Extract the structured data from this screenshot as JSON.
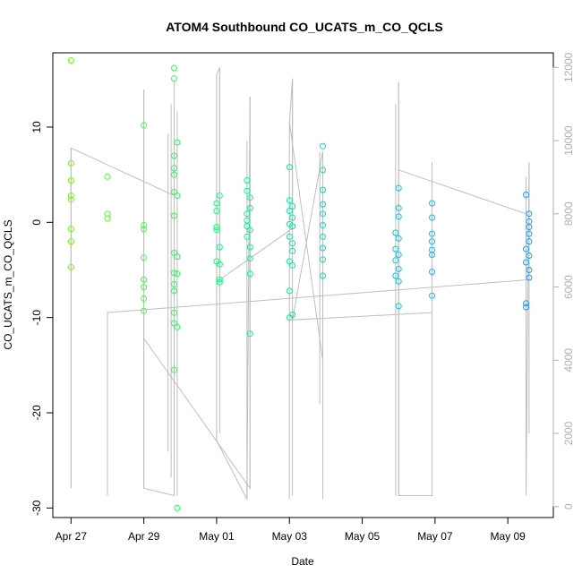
{
  "chart_data": {
    "type": "scatter",
    "title": "ATOM4 Southbound CO_UCATS_m_CO_QCLS",
    "xlabel": "Date",
    "ylabel": "CO_UCATS_m_CO_QCLS",
    "x_ticks": [
      {
        "date": "2016-04-27",
        "label": "Apr 27"
      },
      {
        "date": "2016-04-29",
        "label": "Apr 29"
      },
      {
        "date": "2016-05-01",
        "label": "May 01"
      },
      {
        "date": "2016-05-03",
        "label": "May 03"
      },
      {
        "date": "2016-05-05",
        "label": "May 05"
      },
      {
        "date": "2016-05-07",
        "label": "May 07"
      },
      {
        "date": "2016-05-09",
        "label": "May 09"
      }
    ],
    "xlim": [
      "2016-04-26T12:00",
      "2016-05-10T06:00"
    ],
    "ylim": [
      -31,
      17.8
    ],
    "y_ticks": [
      10,
      0,
      -10,
      -20,
      -30
    ],
    "y2_label": "",
    "y2lim": [
      -300,
      12400
    ],
    "y2_ticks": [
      0,
      2000,
      4000,
      6000,
      8000,
      10000,
      12000
    ],
    "grid": false,
    "colors": {
      "line": "#bebebe",
      "right_axis": "#b0b0b0",
      "point_early": "#7cfc00",
      "point_mid": "#00ff7f",
      "point_late": "#00bfff",
      "point_end": "#1e90ff"
    },
    "series": [
      {
        "type": "points",
        "points": [
          {
            "x": "2016-04-27T00:00",
            "y": 17.0
          },
          {
            "x": "2016-04-27T00:00",
            "y": 6.2
          },
          {
            "x": "2016-04-27T00:00",
            "y": 4.4
          },
          {
            "x": "2016-04-27T00:00",
            "y": 2.8
          },
          {
            "x": "2016-04-27T00:00",
            "y": 2.4
          },
          {
            "x": "2016-04-27T00:00",
            "y": -0.7
          },
          {
            "x": "2016-04-27T00:00",
            "y": -2.0
          },
          {
            "x": "2016-04-27T00:00",
            "y": -4.7
          },
          {
            "x": "2016-04-28T00:00",
            "y": 4.8
          },
          {
            "x": "2016-04-28T00:00",
            "y": 0.9
          },
          {
            "x": "2016-04-28T00:00",
            "y": 0.4
          },
          {
            "x": "2016-04-29T00:00",
            "y": 10.2
          },
          {
            "x": "2016-04-29T00:00",
            "y": -0.3
          },
          {
            "x": "2016-04-29T00:00",
            "y": -0.7
          },
          {
            "x": "2016-04-29T00:00",
            "y": -3.7
          },
          {
            "x": "2016-04-29T00:00",
            "y": -6.0
          },
          {
            "x": "2016-04-29T00:00",
            "y": -6.8
          },
          {
            "x": "2016-04-29T00:00",
            "y": -8.0
          },
          {
            "x": "2016-04-29T00:00",
            "y": -9.3
          },
          {
            "x": "2016-04-29T20:00",
            "y": 16.2
          },
          {
            "x": "2016-04-29T20:00",
            "y": 15.1
          },
          {
            "x": "2016-04-29T20:00",
            "y": 7.0
          },
          {
            "x": "2016-04-29T22:00",
            "y": 8.4
          },
          {
            "x": "2016-04-29T20:00",
            "y": 5.7
          },
          {
            "x": "2016-04-29T20:00",
            "y": 5.0
          },
          {
            "x": "2016-04-29T20:00",
            "y": 3.2
          },
          {
            "x": "2016-04-29T22:00",
            "y": 2.8
          },
          {
            "x": "2016-04-29T20:00",
            "y": 0.7
          },
          {
            "x": "2016-04-29T20:00",
            "y": -3.2
          },
          {
            "x": "2016-04-29T22:00",
            "y": -3.6
          },
          {
            "x": "2016-04-29T20:00",
            "y": -5.3
          },
          {
            "x": "2016-04-29T22:00",
            "y": -5.4
          },
          {
            "x": "2016-04-29T20:00",
            "y": -6.5
          },
          {
            "x": "2016-04-29T20:00",
            "y": -7.2
          },
          {
            "x": "2016-04-29T20:00",
            "y": -9.5
          },
          {
            "x": "2016-04-29T20:00",
            "y": -10.6
          },
          {
            "x": "2016-04-29T22:00",
            "y": -11.0
          },
          {
            "x": "2016-04-29T20:00",
            "y": -15.5
          },
          {
            "x": "2016-04-29T22:00",
            "y": -30.0
          },
          {
            "x": "2016-05-01T02:00",
            "y": 2.8
          },
          {
            "x": "2016-05-01T00:00",
            "y": 2.0
          },
          {
            "x": "2016-05-01T00:00",
            "y": 1.2
          },
          {
            "x": "2016-05-01T00:00",
            "y": -0.5
          },
          {
            "x": "2016-05-01T00:00",
            "y": -0.8
          },
          {
            "x": "2016-05-01T02:00",
            "y": -2.6
          },
          {
            "x": "2016-05-01T00:00",
            "y": -4.1
          },
          {
            "x": "2016-05-01T02:00",
            "y": -4.4
          },
          {
            "x": "2016-05-01T02:00",
            "y": -6.0
          },
          {
            "x": "2016-05-01T02:00",
            "y": -6.3
          },
          {
            "x": "2016-05-01T20:00",
            "y": 4.4
          },
          {
            "x": "2016-05-01T20:00",
            "y": 3.3
          },
          {
            "x": "2016-05-01T22:00",
            "y": 2.6
          },
          {
            "x": "2016-05-01T22:00",
            "y": 1.5
          },
          {
            "x": "2016-05-01T20:00",
            "y": 0.9
          },
          {
            "x": "2016-05-01T20:00",
            "y": 0.2
          },
          {
            "x": "2016-05-01T20:00",
            "y": -0.4
          },
          {
            "x": "2016-05-01T22:00",
            "y": -0.8
          },
          {
            "x": "2016-05-01T20:00",
            "y": -1.5
          },
          {
            "x": "2016-05-01T22:00",
            "y": -2.6
          },
          {
            "x": "2016-05-01T22:00",
            "y": -3.8
          },
          {
            "x": "2016-05-01T22:00",
            "y": -5.4
          },
          {
            "x": "2016-05-01T22:00",
            "y": -11.7
          },
          {
            "x": "2016-05-03T00:00",
            "y": 5.8
          },
          {
            "x": "2016-05-03T00:00",
            "y": 2.3
          },
          {
            "x": "2016-05-03T02:00",
            "y": 1.7
          },
          {
            "x": "2016-05-03T00:00",
            "y": 1.2
          },
          {
            "x": "2016-05-03T02:00",
            "y": 0.5
          },
          {
            "x": "2016-05-03T00:00",
            "y": -0.2
          },
          {
            "x": "2016-05-03T02:00",
            "y": -0.4
          },
          {
            "x": "2016-05-03T00:00",
            "y": -1.5
          },
          {
            "x": "2016-05-03T02:00",
            "y": -2.2
          },
          {
            "x": "2016-05-03T02:00",
            "y": -3.0
          },
          {
            "x": "2016-05-03T00:00",
            "y": -4.1
          },
          {
            "x": "2016-05-03T02:00",
            "y": -4.5
          },
          {
            "x": "2016-05-03T00:00",
            "y": -7.2
          },
          {
            "x": "2016-05-03T02:00",
            "y": -9.7
          },
          {
            "x": "2016-05-03T00:00",
            "y": -10.0
          },
          {
            "x": "2016-05-03T22:00",
            "y": 8.0
          },
          {
            "x": "2016-05-03T22:00",
            "y": 5.5
          },
          {
            "x": "2016-05-03T22:00",
            "y": 3.4
          },
          {
            "x": "2016-05-03T22:00",
            "y": 1.9
          },
          {
            "x": "2016-05-03T22:00",
            "y": 0.9
          },
          {
            "x": "2016-05-03T22:00",
            "y": -0.3
          },
          {
            "x": "2016-05-03T22:00",
            "y": -1.5
          },
          {
            "x": "2016-05-03T22:00",
            "y": -2.7
          },
          {
            "x": "2016-05-03T22:00",
            "y": -3.9
          },
          {
            "x": "2016-05-03T22:00",
            "y": -5.6
          },
          {
            "x": "2016-05-06T00:00",
            "y": 3.6
          },
          {
            "x": "2016-05-06T00:00",
            "y": 1.5
          },
          {
            "x": "2016-05-06T00:00",
            "y": 0.6
          },
          {
            "x": "2016-05-05T22:00",
            "y": -1.1
          },
          {
            "x": "2016-05-06T00:00",
            "y": -1.7
          },
          {
            "x": "2016-05-05T22:00",
            "y": -2.8
          },
          {
            "x": "2016-05-06T00:00",
            "y": -3.4
          },
          {
            "x": "2016-05-05T22:00",
            "y": -4.0
          },
          {
            "x": "2016-05-06T00:00",
            "y": -4.9
          },
          {
            "x": "2016-05-05T22:00",
            "y": -5.6
          },
          {
            "x": "2016-05-06T00:00",
            "y": -6.2
          },
          {
            "x": "2016-05-06T00:00",
            "y": -8.8
          },
          {
            "x": "2016-05-06T22:00",
            "y": 2.0
          },
          {
            "x": "2016-05-06T22:00",
            "y": 0.5
          },
          {
            "x": "2016-05-06T22:00",
            "y": -1.2
          },
          {
            "x": "2016-05-06T22:00",
            "y": -2.0
          },
          {
            "x": "2016-05-06T22:00",
            "y": -2.9
          },
          {
            "x": "2016-05-06T22:00",
            "y": -3.4
          },
          {
            "x": "2016-05-06T22:00",
            "y": -5.2
          },
          {
            "x": "2016-05-06T22:00",
            "y": -7.7
          },
          {
            "x": "2016-05-09T12:00",
            "y": 2.9
          },
          {
            "x": "2016-05-09T14:00",
            "y": 0.9
          },
          {
            "x": "2016-05-09T14:00",
            "y": 0.1
          },
          {
            "x": "2016-05-09T14:00",
            "y": -0.5
          },
          {
            "x": "2016-05-09T14:00",
            "y": -1.2
          },
          {
            "x": "2016-05-09T14:00",
            "y": -2.0
          },
          {
            "x": "2016-05-09T12:00",
            "y": -2.8
          },
          {
            "x": "2016-05-09T14:00",
            "y": -3.5
          },
          {
            "x": "2016-05-09T12:00",
            "y": -4.2
          },
          {
            "x": "2016-05-09T14:00",
            "y": -5.0
          },
          {
            "x": "2016-05-09T14:00",
            "y": -5.8
          },
          {
            "x": "2016-05-09T12:00",
            "y": -8.5
          },
          {
            "x": "2016-05-09T12:00",
            "y": -8.9
          }
        ]
      },
      {
        "type": "line",
        "axis": "right",
        "points": [
          {
            "x": "2016-04-27T00:00",
            "y": 4800
          },
          {
            "x": "2016-04-27T00:00",
            "y": 500
          },
          {
            "x": "2016-04-27T00:00",
            "y": 9800
          },
          {
            "x": "2016-04-29T20:00",
            "y": 8500
          },
          {
            "x": "2016-04-29T20:00",
            "y": 300
          },
          {
            "x": "2016-04-29T00:00",
            "y": 500
          },
          {
            "x": "2016-04-29T00:00",
            "y": 11400
          },
          {
            "x": "2016-04-29T00:00",
            "y": 4600
          },
          {
            "x": "2016-05-01T22:00",
            "y": 500
          },
          {
            "x": "2016-05-01T22:00",
            "y": 11200
          },
          {
            "x": "2016-05-01T20:00",
            "y": 200
          },
          {
            "x": "2016-05-01T00:00",
            "y": 1800
          },
          {
            "x": "2016-05-01T00:00",
            "y": 11800
          },
          {
            "x": "2016-05-01T02:00",
            "y": 12000
          },
          {
            "x": "2016-05-01T02:00",
            "y": 6200
          },
          {
            "x": "2016-05-03T02:00",
            "y": 7600
          },
          {
            "x": "2016-05-03T02:00",
            "y": 11700
          },
          {
            "x": "2016-05-03T00:00",
            "y": 10500
          },
          {
            "x": "2016-05-03T22:00",
            "y": 4000
          },
          {
            "x": "2016-05-03T22:00",
            "y": 9700
          },
          {
            "x": "2016-05-03T02:00",
            "y": 5100
          },
          {
            "x": "2016-05-06T22:00",
            "y": 5300
          },
          {
            "x": "2016-05-06T22:00",
            "y": 9400
          },
          {
            "x": "2016-05-06T22:00",
            "y": 300
          },
          {
            "x": "2016-05-06T00:00",
            "y": 300
          },
          {
            "x": "2016-05-06T00:00",
            "y": 11600
          },
          {
            "x": "2016-05-06T00:00",
            "y": 9200
          },
          {
            "x": "2016-05-09T12:00",
            "y": 8000
          },
          {
            "x": "2016-05-09T12:00",
            "y": 300
          },
          {
            "x": "2016-05-09T14:00",
            "y": 9400
          },
          {
            "x": "2016-05-09T14:00",
            "y": 6200
          },
          {
            "x": "2016-04-28T00:00",
            "y": 5300
          },
          {
            "x": "2016-04-28T00:00",
            "y": 300
          }
        ]
      }
    ],
    "vertical_spikes": [
      {
        "x": "2016-04-27T00:00",
        "ymin": 500,
        "ymax": 9800
      },
      {
        "x": "2016-04-29T00:00",
        "ymin": 500,
        "ymax": 11400
      },
      {
        "x": "2016-04-29T16:00",
        "ymin": 1500,
        "ymax": 10200
      },
      {
        "x": "2016-04-29T18:00",
        "ymin": 800,
        "ymax": 11000
      },
      {
        "x": "2016-04-29T20:00",
        "ymin": 300,
        "ymax": 11600
      },
      {
        "x": "2016-04-29T22:00",
        "ymin": 300,
        "ymax": 10800
      },
      {
        "x": "2016-05-01T00:00",
        "ymin": 1800,
        "ymax": 11800
      },
      {
        "x": "2016-05-01T02:00",
        "ymin": 2000,
        "ymax": 12000
      },
      {
        "x": "2016-05-01T20:00",
        "ymin": 200,
        "ymax": 10000
      },
      {
        "x": "2016-05-01T22:00",
        "ymin": 500,
        "ymax": 11200
      },
      {
        "x": "2016-05-03T00:00",
        "ymin": 200,
        "ymax": 10500
      },
      {
        "x": "2016-05-03T02:00",
        "ymin": 300,
        "ymax": 11700
      },
      {
        "x": "2016-05-03T20:00",
        "ymin": 2800,
        "ymax": 9700
      },
      {
        "x": "2016-05-03T22:00",
        "ymin": 200,
        "ymax": 9500
      },
      {
        "x": "2016-05-05T22:00",
        "ymin": 300,
        "ymax": 11000
      },
      {
        "x": "2016-05-06T00:00",
        "ymin": 300,
        "ymax": 11600
      },
      {
        "x": "2016-05-06T22:00",
        "ymin": 300,
        "ymax": 9400
      },
      {
        "x": "2016-05-09T12:00",
        "ymin": 300,
        "ymax": 9000
      },
      {
        "x": "2016-05-09T14:00",
        "ymin": 2000,
        "ymax": 9400
      }
    ]
  }
}
